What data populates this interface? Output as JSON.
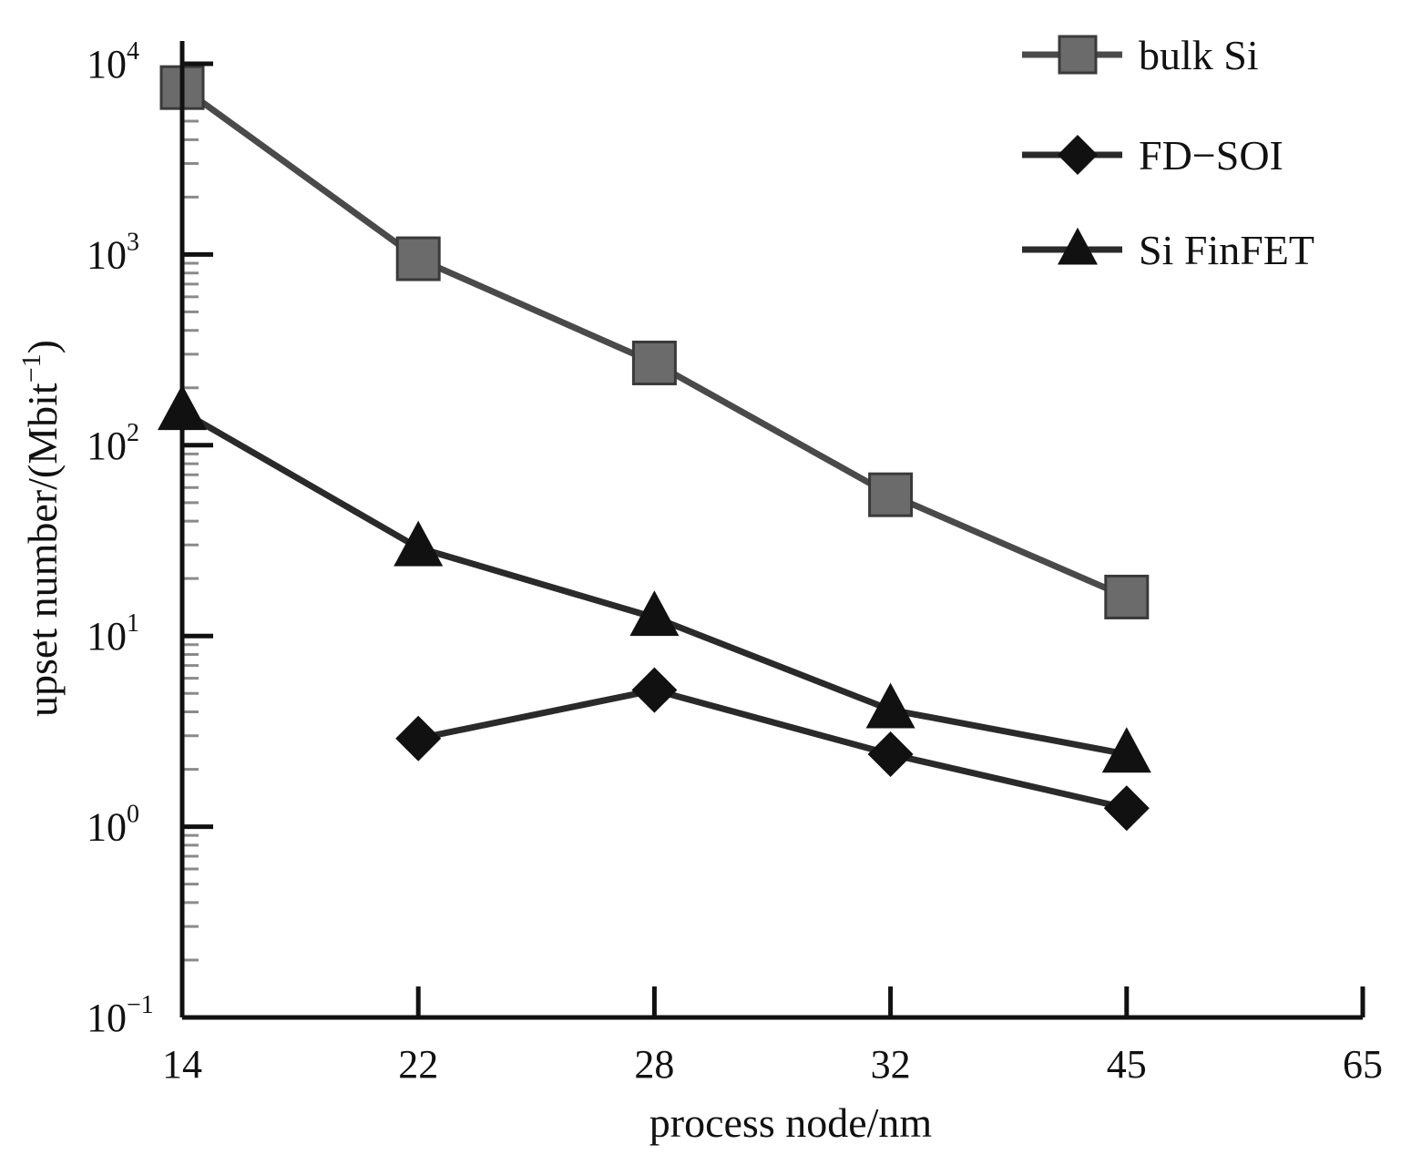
{
  "chart_data": {
    "type": "line",
    "xlabel": "process node/nm",
    "ylabel": "upset number/(Mbit",
    "ylabel_sup": "−1",
    "ylabel_close": ")",
    "categories": [
      "14",
      "22",
      "28",
      "32",
      "45",
      "65"
    ],
    "yscale": "log",
    "ylim": [
      0.1,
      10000
    ],
    "yticks": [
      {
        "base": "10",
        "exp": "−1",
        "value": 0.1
      },
      {
        "base": "10",
        "exp": "0",
        "value": 1
      },
      {
        "base": "10",
        "exp": "1",
        "value": 10
      },
      {
        "base": "10",
        "exp": "2",
        "value": 100
      },
      {
        "base": "10",
        "exp": "3",
        "value": 1000
      },
      {
        "base": "10",
        "exp": "4",
        "value": 10000
      }
    ],
    "grid": false,
    "legend_position": "top-right",
    "series": [
      {
        "name": "bulk Si",
        "marker": "square",
        "color": "#6b6b6b",
        "line_color": "#4a4a4a",
        "points": [
          {
            "x": "14",
            "y": 7500
          },
          {
            "x": "22",
            "y": 950
          },
          {
            "x": "28",
            "y": 270
          },
          {
            "x": "32",
            "y": 55
          },
          {
            "x": "45",
            "y": 16
          }
        ]
      },
      {
        "name": "FD−SOI",
        "marker": "diamond",
        "color": "#111111",
        "line_color": "#2a2a2a",
        "points": [
          {
            "x": "22",
            "y": 2.9
          },
          {
            "x": "28",
            "y": 5.2
          },
          {
            "x": "32",
            "y": 2.4
          },
          {
            "x": "45",
            "y": 1.25
          }
        ]
      },
      {
        "name": "Si FinFET",
        "marker": "triangle",
        "color": "#111111",
        "line_color": "#2a2a2a",
        "points": [
          {
            "x": "14",
            "y": 150
          },
          {
            "x": "22",
            "y": 29
          },
          {
            "x": "28",
            "y": 12.5
          },
          {
            "x": "32",
            "y": 4.1
          },
          {
            "x": "45",
            "y": 2.4
          }
        ]
      }
    ]
  }
}
